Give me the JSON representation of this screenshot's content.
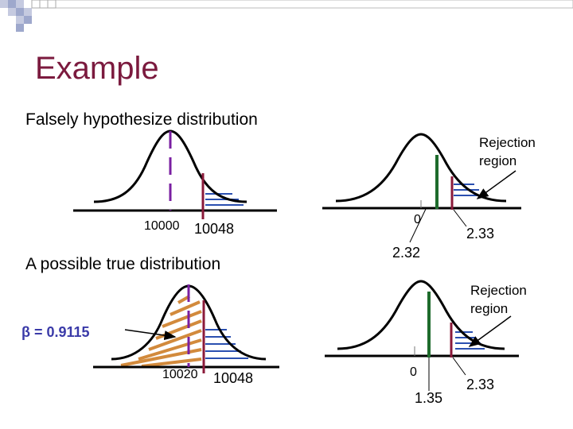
{
  "title": "Example",
  "top_left": {
    "heading": "Falsely hypothesize distribution",
    "mean_label": "10000",
    "critical_label": "10048"
  },
  "top_right": {
    "rejection_label_line1": "Rejection",
    "rejection_label_line2": "region",
    "zero_label": "0",
    "test_stat_label": "2.32",
    "critical_label": "2.33"
  },
  "bottom_left": {
    "heading": "A possible true distribution",
    "beta_label": "β = 0.9115",
    "mean_label": "10020",
    "critical_label": "10048"
  },
  "bottom_right": {
    "rejection_label_line1": "Rejection",
    "rejection_label_line2": "region",
    "zero_label": "0",
    "test_stat_label": "1.35",
    "critical_label": "2.33"
  },
  "colors": {
    "title": "#7b1a3e",
    "purple_dashed": "#7a1fa2",
    "maroon_line": "#8b1a3a",
    "green_line": "#1e6b2c",
    "hatch_blue": "#2a4fb0",
    "hatch_orange": "#d28a3c",
    "beta_text": "#3a3aa8"
  }
}
